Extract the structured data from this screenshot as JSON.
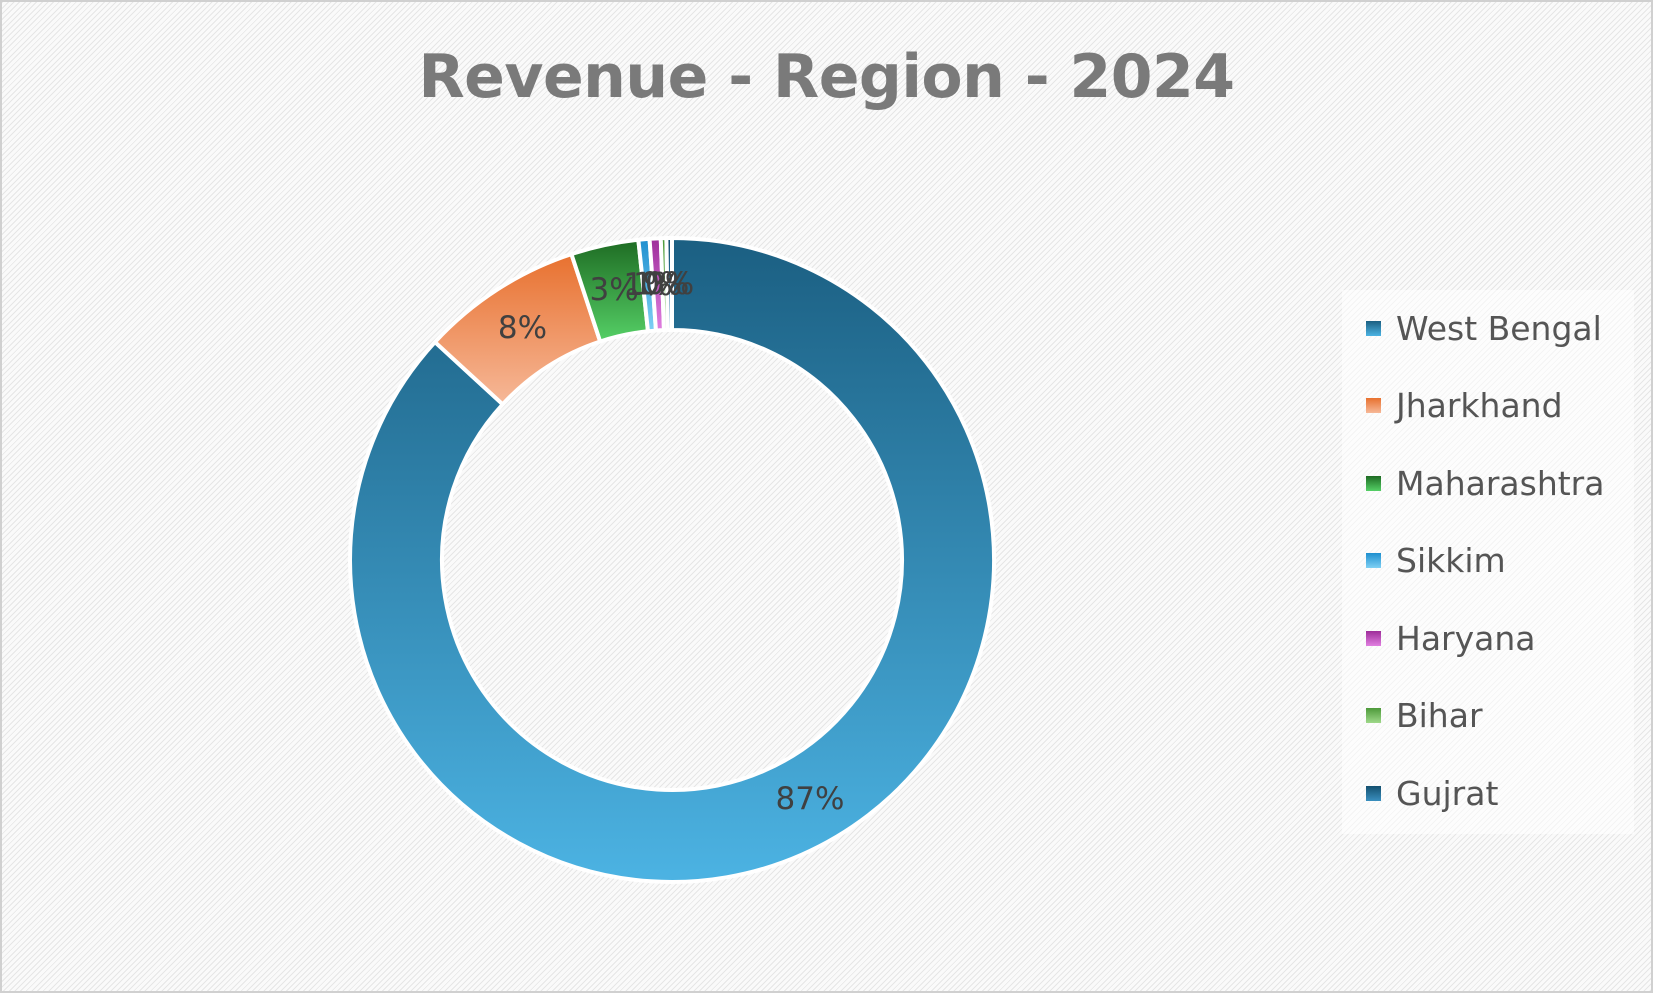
{
  "chart_data": {
    "type": "pie",
    "subtype": "doughnut",
    "title": "Revenue - Region - 2024",
    "legend_position": "right",
    "categories": [
      "West Bengal",
      "Jharkhand",
      "Maharashtra",
      "Sikkim",
      "Haryana",
      "Bihar",
      "Gujrat"
    ],
    "values": [
      87,
      8,
      3,
      1,
      1,
      0,
      0
    ],
    "data_labels": [
      "87%",
      "8%",
      "3%",
      "1%",
      "1%",
      "0%",
      "0%"
    ],
    "colors": {
      "West Bengal": [
        "#1b5f82",
        "#4cb3e3"
      ],
      "Jharkhand": [
        "#e8712f",
        "#f6b898"
      ],
      "Maharashtra": [
        "#1e6b23",
        "#55d066"
      ],
      "Sikkim": [
        "#1e8fcf",
        "#7fd0f4"
      ],
      "Haryana": [
        "#9e2d9a",
        "#e07fe0"
      ],
      "Bihar": [
        "#4d9a3a",
        "#9ed889"
      ],
      "Gujrat": [
        "#14506f",
        "#3a8fbf"
      ]
    }
  }
}
